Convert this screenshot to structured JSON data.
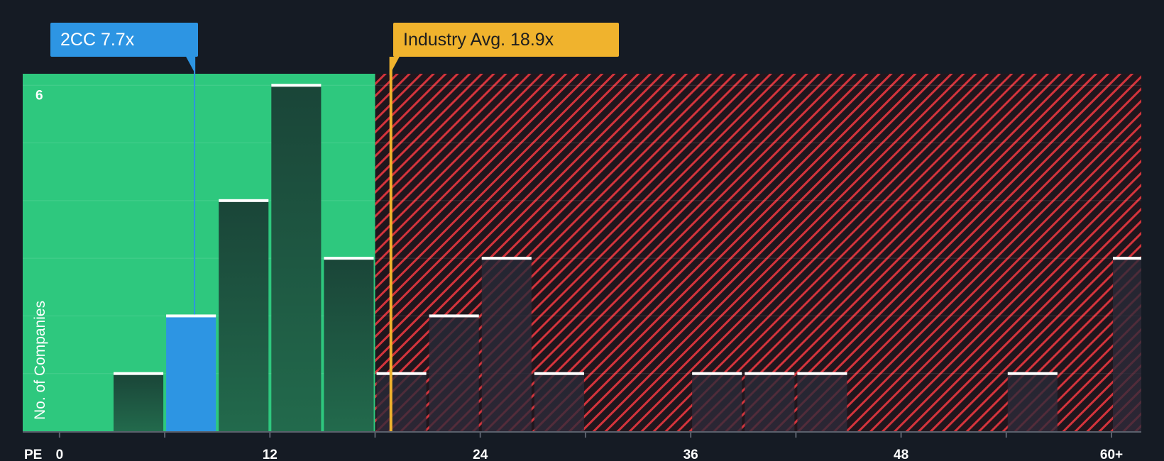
{
  "chart_data": {
    "type": "bar",
    "title": "",
    "xlabel": "PE",
    "ylabel": "No. of Companies",
    "x_ticks": [
      {
        "value": 0,
        "label": "0"
      },
      {
        "value": 12,
        "label": "12"
      },
      {
        "value": 24,
        "label": "24"
      },
      {
        "value": 36,
        "label": "36"
      },
      {
        "value": 48,
        "label": "48"
      },
      {
        "value": 60,
        "label": "60+"
      }
    ],
    "y_ticks": [
      {
        "value": 6,
        "label": "6"
      }
    ],
    "xlim": [
      -2.1,
      61.7
    ],
    "ylim": [
      0,
      6.2
    ],
    "bins": [
      {
        "start": 3,
        "end": 6,
        "count": 1,
        "zone": "below"
      },
      {
        "start": 6,
        "end": 9,
        "count": 2,
        "zone": "company"
      },
      {
        "start": 9,
        "end": 12,
        "count": 4,
        "zone": "below"
      },
      {
        "start": 12,
        "end": 15,
        "count": 6,
        "zone": "below"
      },
      {
        "start": 15,
        "end": 18,
        "count": 3,
        "zone": "below"
      },
      {
        "start": 18,
        "end": 21,
        "count": 1,
        "zone": "above"
      },
      {
        "start": 21,
        "end": 24,
        "count": 2,
        "zone": "above"
      },
      {
        "start": 24,
        "end": 27,
        "count": 3,
        "zone": "above"
      },
      {
        "start": 27,
        "end": 30,
        "count": 1,
        "zone": "above"
      },
      {
        "start": 36,
        "end": 39,
        "count": 1,
        "zone": "above"
      },
      {
        "start": 39,
        "end": 42,
        "count": 1,
        "zone": "above"
      },
      {
        "start": 42,
        "end": 45,
        "count": 1,
        "zone": "above"
      },
      {
        "start": 54,
        "end": 57,
        "count": 1,
        "zone": "above"
      },
      {
        "start": 60,
        "end": 63,
        "count": 3,
        "zone": "above"
      }
    ],
    "fair_value_threshold": 18,
    "company": {
      "label": "2CC 7.7x",
      "value": 7.7,
      "color": "#2d95e3"
    },
    "industry_avg": {
      "label": "Industry Avg. 18.9x",
      "value": 18.9,
      "color": "#f0b32d"
    },
    "colors": {
      "background": "#151b24",
      "below_zone": "#2ec87e",
      "above_zone_stripe": "#d4343c",
      "bar_below": "#1e4a3c",
      "bar_above": "#2a2f3e",
      "bar_top": "#ffffff"
    }
  }
}
